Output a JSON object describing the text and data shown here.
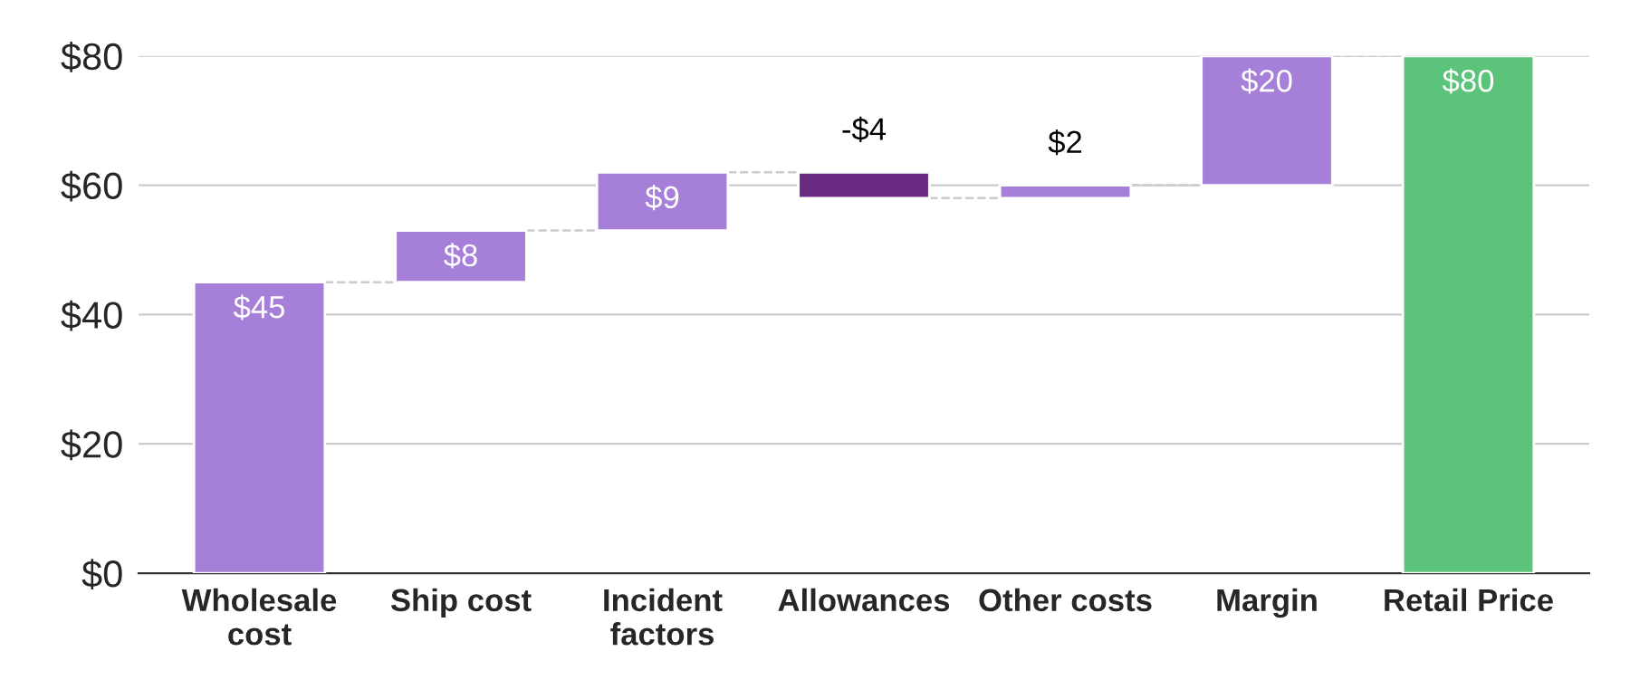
{
  "chart_data": {
    "type": "bar",
    "categories": [
      "Wholesale cost",
      "Ship cost",
      "Incident factors",
      "Allowances",
      "Other costs",
      "Margin",
      "Retail Price"
    ],
    "values": [
      45,
      8,
      9,
      -4,
      2,
      20,
      80
    ],
    "base": [
      0,
      45,
      53,
      62,
      58,
      60,
      0
    ],
    "colors": [
      "#a67fd9",
      "#a67fd9",
      "#a67fd9",
      "#6b2a82",
      "#a67fd9",
      "#a67fd9",
      "#5bc37a"
    ],
    "value_labels": [
      "$45",
      "$8",
      "$9",
      "-$4",
      "$2",
      "$20",
      "$80"
    ],
    "ylim": [
      0,
      80
    ],
    "yticks": [
      {
        "value": 0,
        "label": "$0"
      },
      {
        "value": 20,
        "label": "$20"
      },
      {
        "value": 40,
        "label": "$40"
      },
      {
        "value": 60,
        "label": "$60"
      },
      {
        "value": 80,
        "label": "$80"
      }
    ],
    "grid": "y",
    "legend": false
  }
}
